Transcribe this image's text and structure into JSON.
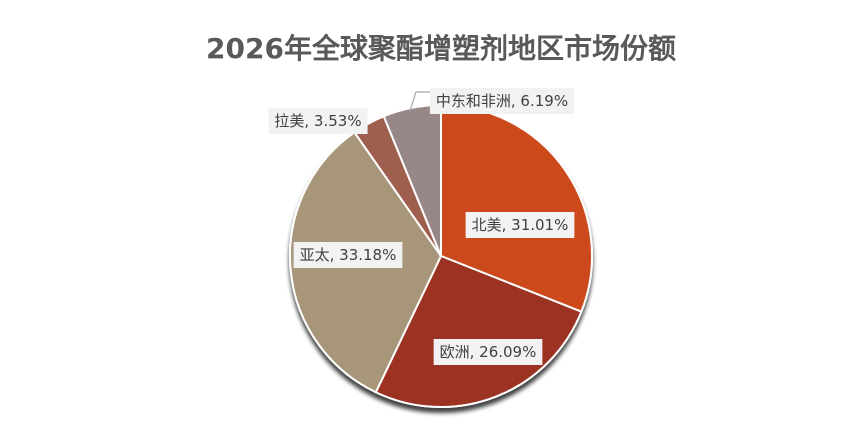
{
  "chart_data": {
    "type": "pie",
    "title": "2026年全球聚酯增塑剂地区市场份额",
    "slices": [
      {
        "label": "北美",
        "value": 31.01,
        "display": "北美, 31.01%",
        "color": "#cc4a1f"
      },
      {
        "label": "欧洲",
        "value": 26.09,
        "display": "欧洲, 26.09%",
        "color": "#9b3020"
      },
      {
        "label": "亚太",
        "value": 33.18,
        "display": "亚太, 33.18%",
        "color": "#a8967a"
      },
      {
        "label": "拉美",
        "value": 3.53,
        "display": "拉美, 3.53%",
        "color": "#9e5f4f"
      },
      {
        "label": "中东和非洲",
        "value": 6.19,
        "display": "中东和非洲, 6.19%",
        "color": "#978786"
      }
    ],
    "start_angle_deg": 0,
    "direction": "clockwise",
    "legend": "none"
  }
}
